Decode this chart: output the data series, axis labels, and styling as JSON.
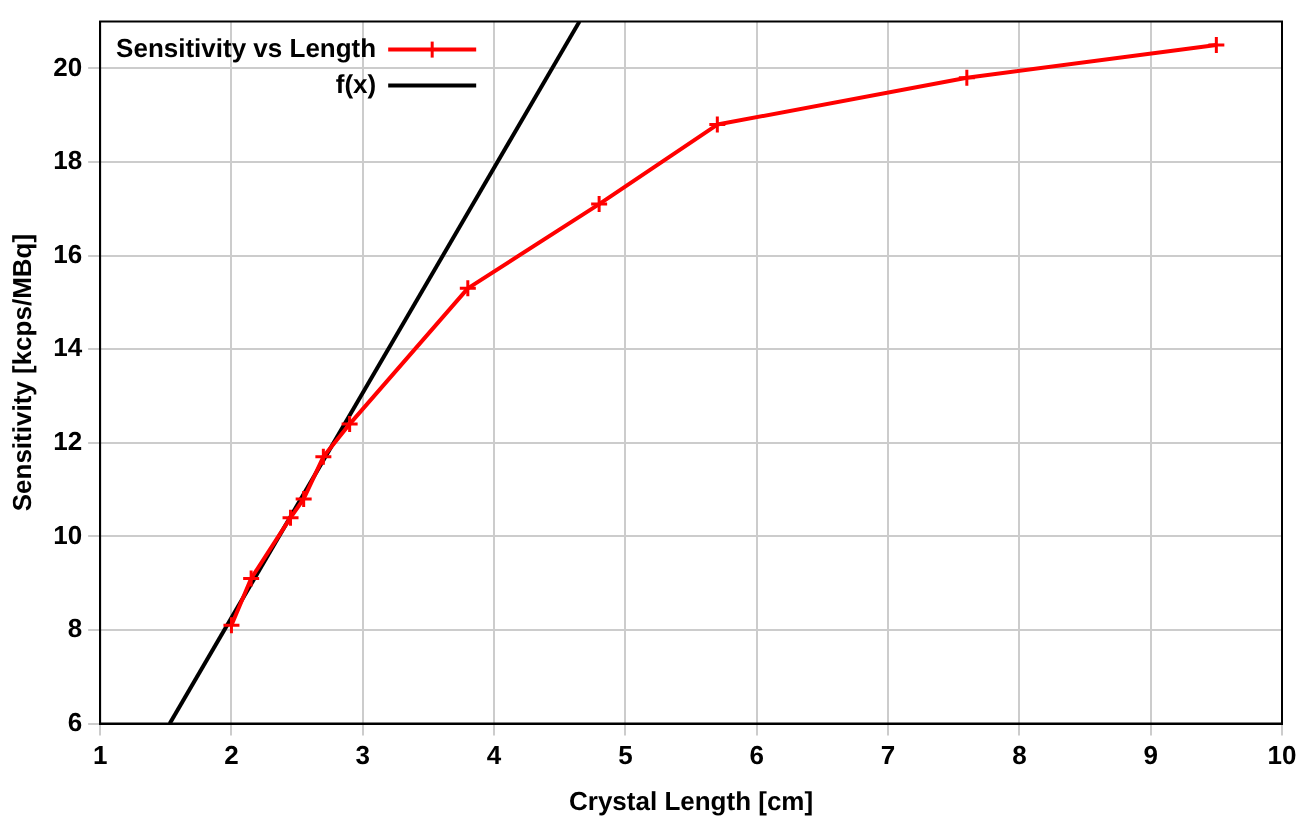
{
  "chart_data": {
    "type": "line",
    "xlabel": "Crystal Length [cm]",
    "ylabel": "Sensitivity [kcps/MBq]",
    "x": [
      2.0,
      2.15,
      2.45,
      2.55,
      2.7,
      2.9,
      3.8,
      4.8,
      5.7,
      7.6,
      9.5
    ],
    "series": [
      {
        "name": "Sensitivity vs Length",
        "color": "#ff0000",
        "values": [
          8.1,
          9.1,
          10.4,
          10.8,
          11.7,
          12.4,
          15.3,
          17.1,
          18.8,
          19.8,
          20.5
        ],
        "marker": "cross"
      },
      {
        "name": "f(x)",
        "color": "#000000",
        "x": [
          1.53,
          4.65
        ],
        "values": [
          6,
          21
        ],
        "marker": "none"
      }
    ],
    "xlim": [
      1,
      10
    ],
    "xticks": [
      1,
      2,
      3,
      4,
      5,
      6,
      7,
      8,
      9,
      10
    ],
    "ylim": [
      6,
      21
    ],
    "yticks": [
      6,
      8,
      10,
      12,
      14,
      16,
      18,
      20
    ],
    "grid": true,
    "legend": "top left",
    "line_style": "solid"
  }
}
